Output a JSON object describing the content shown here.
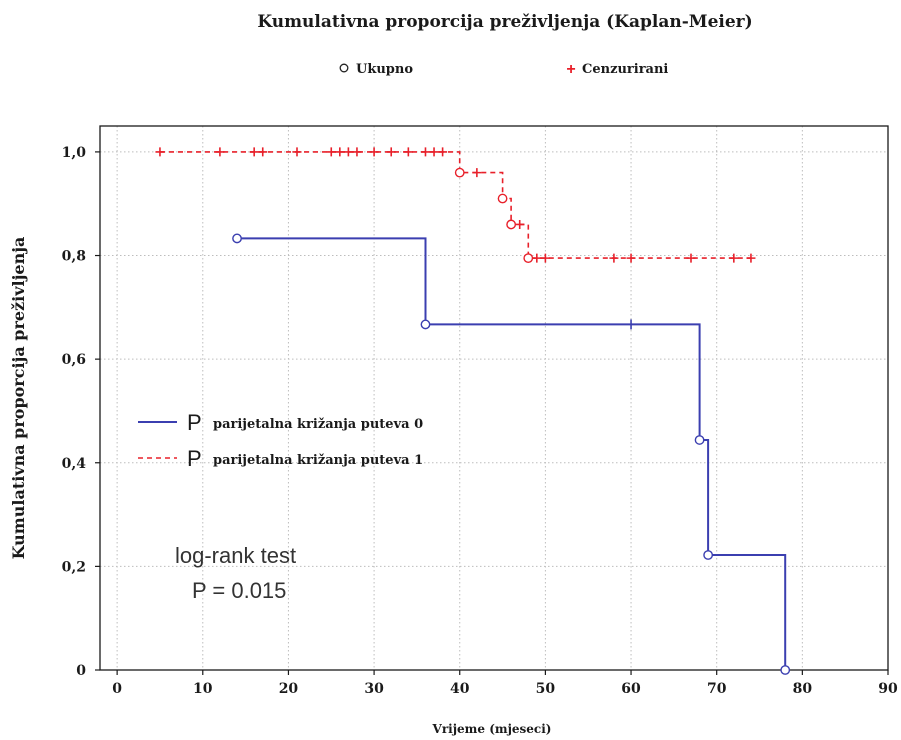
{
  "chart_data": {
    "type": "line",
    "title": "Kumulativna proporcija preživljenja (Kaplan-Meier)",
    "xlabel": "Vrijeme (mjeseci)",
    "ylabel": "Kumulativna proporcija preživljenja",
    "xlim": [
      -2,
      90
    ],
    "ylim": [
      0,
      1.05
    ],
    "xticks": [
      0,
      10,
      20,
      30,
      40,
      50,
      60,
      70,
      80,
      90
    ],
    "xtick_labels": [
      "0",
      "10",
      "20",
      "30",
      "40",
      "50",
      "60",
      "70",
      "80",
      "90"
    ],
    "yticks": [
      0,
      0.2,
      0.4,
      0.6,
      0.8,
      1.0
    ],
    "ytick_labels": [
      "0",
      "0,2",
      "0,4",
      "0,6",
      "0,8",
      "1,0"
    ],
    "grid": true,
    "top_legend": [
      {
        "marker": "circle",
        "label": "Ukupno",
        "color": "#000000"
      },
      {
        "marker": "plus",
        "label": "Cenzurirani",
        "color": "#e8202a"
      }
    ],
    "legend_placement": "center-left",
    "legend": [
      {
        "glyph": "P",
        "text": "parijetalna križanja puteva 0",
        "style": "solid",
        "color": "#3b3fb0"
      },
      {
        "glyph": "P",
        "text": "parijetalna križanja puteva 1",
        "style": "dashed",
        "color": "#e8202a"
      }
    ],
    "annotation": {
      "line1": "log-rank test",
      "line2": "P = 0.015"
    },
    "series": [
      {
        "name": "parijetalna križanja puteva 0",
        "color": "#3b3fb0",
        "style": "solid",
        "steps": [
          [
            14,
            0.833
          ],
          [
            36,
            0.833
          ],
          [
            36,
            0.667
          ],
          [
            68,
            0.667
          ],
          [
            68,
            0.444
          ],
          [
            69,
            0.444
          ],
          [
            69,
            0.222
          ],
          [
            78,
            0.222
          ],
          [
            78,
            0.0
          ]
        ],
        "events": [
          [
            14,
            0.833
          ],
          [
            36,
            0.667
          ],
          [
            68,
            0.444
          ],
          [
            69,
            0.222
          ],
          [
            78,
            0.0
          ]
        ],
        "censored": [
          [
            60,
            0.667
          ]
        ]
      },
      {
        "name": "parijetalna križanja puteva 1",
        "color": "#e8202a",
        "style": "dashed",
        "steps": [
          [
            5,
            1.0
          ],
          [
            40,
            1.0
          ],
          [
            40,
            0.96
          ],
          [
            45,
            0.96
          ],
          [
            45,
            0.91
          ],
          [
            46,
            0.91
          ],
          [
            46,
            0.86
          ],
          [
            48,
            0.86
          ],
          [
            48,
            0.795
          ],
          [
            74,
            0.795
          ]
        ],
        "events": [
          [
            40,
            0.96
          ],
          [
            45,
            0.91
          ],
          [
            46,
            0.86
          ],
          [
            48,
            0.795
          ]
        ],
        "censored": [
          [
            5,
            1.0
          ],
          [
            12,
            1.0
          ],
          [
            16,
            1.0
          ],
          [
            17,
            1.0
          ],
          [
            21,
            1.0
          ],
          [
            25,
            1.0
          ],
          [
            26,
            1.0
          ],
          [
            27,
            1.0
          ],
          [
            28,
            1.0
          ],
          [
            30,
            1.0
          ],
          [
            32,
            1.0
          ],
          [
            34,
            1.0
          ],
          [
            36,
            1.0
          ],
          [
            37,
            1.0
          ],
          [
            38,
            1.0
          ],
          [
            42,
            0.96
          ],
          [
            47,
            0.86
          ],
          [
            49,
            0.795
          ],
          [
            50,
            0.795
          ],
          [
            58,
            0.795
          ],
          [
            60,
            0.795
          ],
          [
            67,
            0.795
          ],
          [
            72,
            0.795
          ],
          [
            74,
            0.795
          ]
        ]
      }
    ]
  }
}
